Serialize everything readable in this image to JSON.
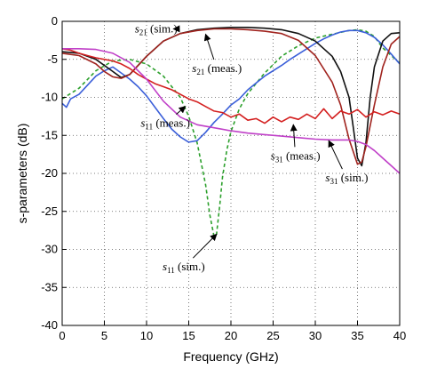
{
  "chart_data": {
    "type": "line",
    "xlabel": "Frequency (GHz)",
    "ylabel": "s-parameters (dB)",
    "xlim": [
      0,
      40
    ],
    "ylim": [
      -40,
      0
    ],
    "xticks": [
      0,
      5,
      10,
      15,
      20,
      25,
      30,
      35,
      40
    ],
    "yticks": [
      0,
      -5,
      -10,
      -15,
      -20,
      -25,
      -30,
      -35,
      -40
    ],
    "grid": "dotted",
    "series": [
      {
        "name": "s11 (sim.)",
        "color": "#2ca02c",
        "dash": "dashed",
        "x": [
          0,
          2,
          4,
          6,
          8,
          10,
          12,
          14,
          15,
          16,
          17,
          17.5,
          18,
          18.3,
          18.7,
          19,
          19.5,
          20,
          21,
          22,
          24,
          26,
          28,
          30,
          32,
          34,
          35,
          36,
          37,
          38,
          40
        ],
        "y": [
          -10.2,
          -8.8,
          -6.5,
          -5.2,
          -5.0,
          -5.6,
          -7.2,
          -10.0,
          -12.5,
          -16.0,
          -21.5,
          -25.5,
          -28.3,
          -28.0,
          -24.0,
          -20.5,
          -17.0,
          -14.5,
          -11.5,
          -9.5,
          -6.8,
          -4.6,
          -3.2,
          -2.2,
          -1.7,
          -1.2,
          -1.1,
          -1.3,
          -2.0,
          -3.5,
          -5.5
        ]
      },
      {
        "name": "s11 (meas.)",
        "color": "#3b5fd9",
        "dash": "solid",
        "x": [
          0,
          0.5,
          1,
          2,
          3,
          4,
          5,
          6,
          7,
          8,
          9,
          10,
          11,
          12,
          13,
          14,
          15,
          16,
          17,
          18,
          19,
          20,
          21,
          22,
          23,
          24,
          25,
          26,
          27,
          28,
          29,
          30,
          31,
          32,
          33,
          34,
          35,
          36,
          37,
          38,
          39,
          40
        ],
        "y": [
          -10.8,
          -11.3,
          -10.2,
          -9.6,
          -8.4,
          -7.2,
          -6.5,
          -6.0,
          -6.8,
          -7.6,
          -8.6,
          -9.8,
          -11.3,
          -12.8,
          -14.2,
          -15.2,
          -15.9,
          -15.7,
          -14.6,
          -13.3,
          -12.2,
          -11.0,
          -10.2,
          -9.0,
          -8.1,
          -7.2,
          -6.5,
          -5.8,
          -5.0,
          -4.3,
          -3.6,
          -2.9,
          -2.3,
          -1.8,
          -1.4,
          -1.2,
          -1.2,
          -1.5,
          -2.1,
          -3.1,
          -4.3,
          -5.6
        ]
      },
      {
        "name": "s21 (sim.)",
        "color": "#111111",
        "dash": "solid",
        "x": [
          0,
          2,
          4,
          6,
          7,
          8,
          10,
          12,
          14,
          16,
          18,
          20,
          22,
          24,
          26,
          28,
          30,
          32,
          33,
          34,
          34.5,
          35,
          35.5,
          36,
          36.5,
          37,
          38,
          39,
          40
        ],
        "y": [
          -4.0,
          -4.2,
          -5.0,
          -6.6,
          -7.4,
          -7.0,
          -4.6,
          -2.6,
          -1.6,
          -1.1,
          -0.9,
          -0.8,
          -0.8,
          -0.9,
          -1.1,
          -1.6,
          -2.6,
          -4.6,
          -6.6,
          -10.0,
          -14.0,
          -18.0,
          -19.0,
          -16.0,
          -10.0,
          -6.0,
          -2.6,
          -1.6,
          -1.5
        ]
      },
      {
        "name": "s21 (meas.)",
        "color": "#a0231e",
        "dash": "solid",
        "x": [
          0,
          2,
          4,
          5,
          6,
          7,
          8,
          10,
          12,
          14,
          16,
          18,
          20,
          22,
          24,
          26,
          28,
          30,
          32,
          33,
          34,
          35,
          35.5,
          36,
          37,
          38,
          39,
          40
        ],
        "y": [
          -4.2,
          -4.5,
          -5.6,
          -6.6,
          -7.3,
          -7.5,
          -7.0,
          -4.6,
          -2.6,
          -1.6,
          -1.2,
          -1.0,
          -1.0,
          -1.1,
          -1.3,
          -1.6,
          -2.5,
          -4.5,
          -8.0,
          -11.0,
          -15.5,
          -18.8,
          -18.5,
          -16.5,
          -11.0,
          -6.0,
          -3.0,
          -2.0
        ]
      },
      {
        "name": "s31 (meas.)",
        "color": "#d42020",
        "dash": "solid",
        "x": [
          0,
          1,
          2,
          3,
          4,
          5,
          6,
          7,
          8,
          9,
          10,
          11,
          12,
          13,
          14,
          15,
          16,
          17,
          18,
          19,
          20,
          21,
          22,
          23,
          24,
          25,
          26,
          27,
          28,
          29,
          30,
          31,
          32,
          33,
          34,
          35,
          36,
          37,
          38,
          39,
          40
        ],
        "y": [
          -3.6,
          -3.8,
          -4.2,
          -4.5,
          -4.8,
          -5.0,
          -5.2,
          -5.6,
          -6.2,
          -7.0,
          -7.6,
          -8.2,
          -8.6,
          -9.0,
          -9.6,
          -10.2,
          -10.6,
          -11.2,
          -11.8,
          -12.0,
          -12.6,
          -12.2,
          -13.0,
          -12.8,
          -13.4,
          -12.6,
          -13.2,
          -12.6,
          -12.9,
          -12.2,
          -12.8,
          -11.5,
          -12.8,
          -11.8,
          -12.2,
          -11.6,
          -12.6,
          -11.9,
          -12.3,
          -11.8,
          -12.2
        ]
      },
      {
        "name": "s31 (sim.)",
        "color": "#c040c8",
        "dash": "solid",
        "x": [
          0,
          2,
          4,
          6,
          8,
          10,
          12,
          14,
          16,
          18,
          20,
          22,
          24,
          26,
          28,
          30,
          32,
          34,
          35,
          36,
          37,
          38,
          39,
          40
        ],
        "y": [
          -3.6,
          -3.6,
          -3.7,
          -4.2,
          -5.4,
          -7.6,
          -10.5,
          -12.6,
          -13.6,
          -14.0,
          -14.4,
          -14.7,
          -14.9,
          -15.1,
          -15.3,
          -15.5,
          -15.6,
          -15.6,
          -15.8,
          -16.2,
          -17.0,
          -18.0,
          -19.0,
          -20.0
        ]
      }
    ],
    "annotations": [
      {
        "label": "s",
        "sub": "21",
        "suffix": " (sim.)",
        "at": [
          8.6,
          -1.0
        ],
        "to": [
          13.2,
          -1.0
        ]
      },
      {
        "label": "s",
        "sub": "21",
        "suffix": " (meas.)",
        "at": [
          15.4,
          -6.2
        ],
        "to": [
          17.0,
          -1.7
        ]
      },
      {
        "label": "s",
        "sub": "11",
        "suffix": " (meas.)",
        "at": [
          9.3,
          -13.4
        ],
        "to": [
          14.6,
          -11.2
        ]
      },
      {
        "label": "s",
        "sub": "11",
        "suffix": " (sim.)",
        "at": [
          11.9,
          -32.3
        ],
        "to": [
          18.3,
          -28.0
        ]
      },
      {
        "label": "s",
        "sub": "31",
        "suffix": " (meas.)",
        "at": [
          24.7,
          -17.7
        ],
        "to": [
          27.4,
          -13.6
        ]
      },
      {
        "label": "s",
        "sub": "31",
        "suffix": " (sim.)",
        "at": [
          31.2,
          -20.6
        ],
        "to": [
          31.6,
          -15.7
        ]
      }
    ]
  }
}
